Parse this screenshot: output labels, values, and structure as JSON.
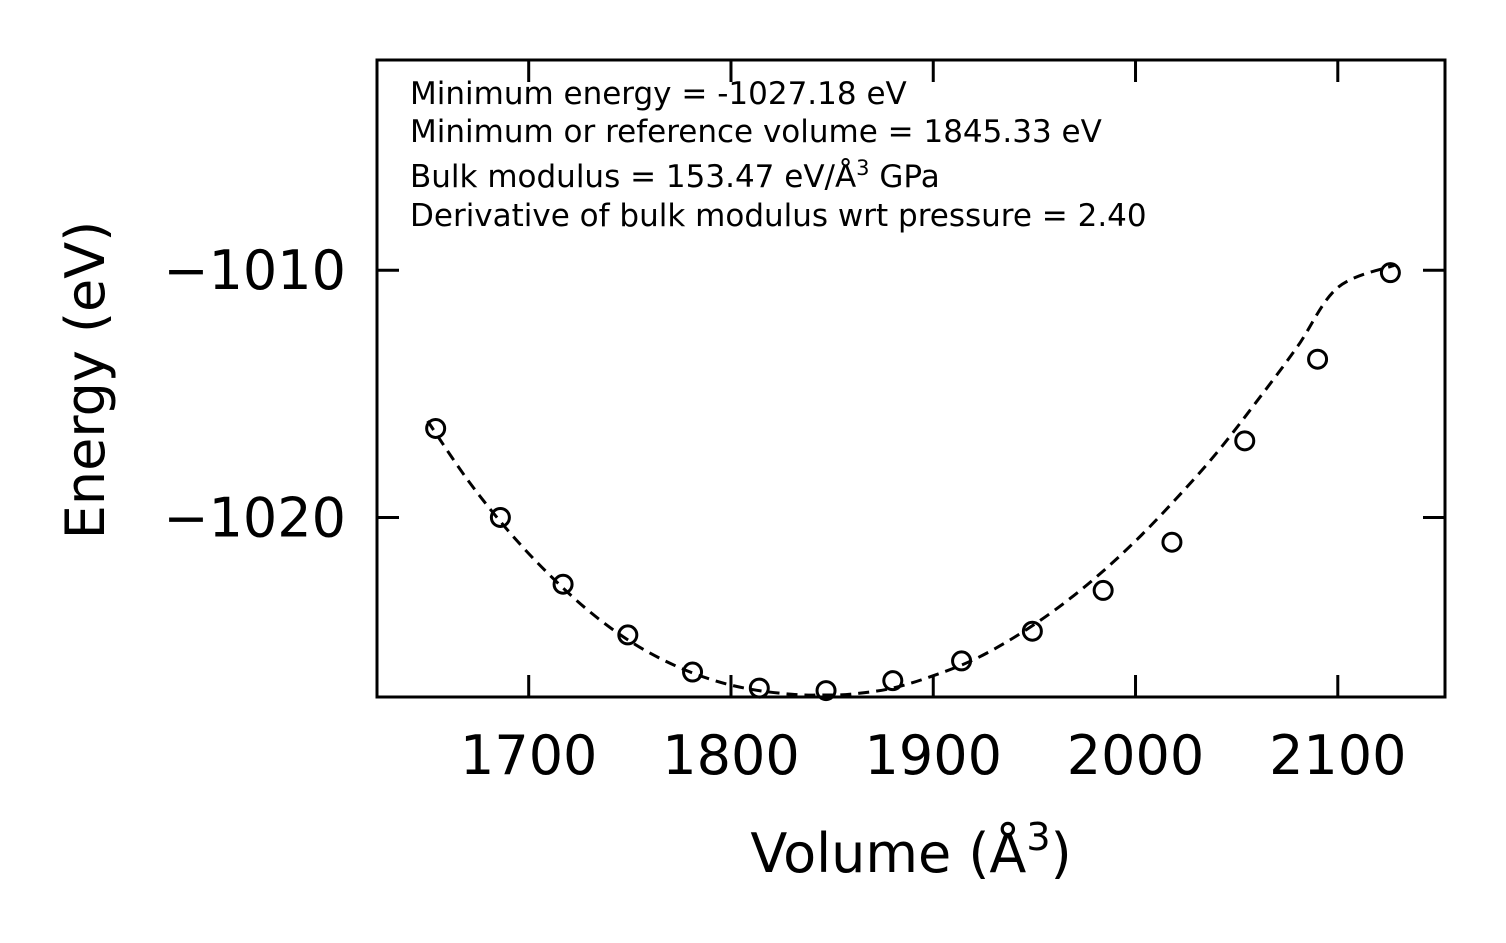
{
  "chart_data": {
    "type": "scatter",
    "title": "",
    "xlabel_main": "Volume (Å",
    "xlabel_sup": "3",
    "xlabel_end": ")",
    "ylabel": "Energy (eV)",
    "xlim": [
      1625,
      2153
    ],
    "ylim": [
      -1027.26,
      -1001.5
    ],
    "xticks": [
      1700,
      1800,
      1900,
      2000,
      2100
    ],
    "yticks": [
      -1010,
      -1020
    ],
    "ytick_labels": [
      "−1010",
      "−1020"
    ],
    "series": [
      {
        "name": "data",
        "marker": "open-circle",
        "x": [
          1654,
          1686,
          1717,
          1749,
          1781,
          1814,
          1847,
          1880,
          1914,
          1949,
          1984,
          2018,
          2054,
          2090,
          2126
        ],
        "y": [
          -1016.4,
          -1020.0,
          -1022.7,
          -1024.75,
          -1026.25,
          -1026.9,
          -1027.0,
          -1026.6,
          -1025.8,
          -1024.6,
          -1022.95,
          -1021.0,
          -1016.9,
          -1013.6,
          -1010.1
        ]
      },
      {
        "name": "fit",
        "style": "dashed",
        "x": [
          1650,
          1670,
          1690,
          1710,
          1730,
          1750,
          1770,
          1790,
          1810,
          1830,
          1845.33,
          1860,
          1880,
          1900,
          1920,
          1940,
          1960,
          1980,
          2000,
          2020,
          2040,
          2060,
          2080,
          2100,
          2128
        ],
        "y": [
          -1016.1,
          -1018.5,
          -1020.55,
          -1022.3,
          -1023.8,
          -1025.0,
          -1025.9,
          -1026.55,
          -1026.95,
          -1027.15,
          -1027.18,
          -1027.14,
          -1026.9,
          -1026.4,
          -1025.75,
          -1024.85,
          -1023.75,
          -1022.45,
          -1020.95,
          -1019.25,
          -1017.4,
          -1015.3,
          -1013.1,
          -1010.7,
          -1009.8
        ]
      }
    ],
    "annotations": [
      {
        "text": "Minimum energy = -1027.18 eV"
      },
      {
        "text": "Minimum or reference volume = 1845.33 eV"
      },
      {
        "text": "Bulk modulus = 153.47 eV/Å",
        "sup": "3",
        "after": " GPa"
      },
      {
        "text": "Derivative of bulk modulus wrt pressure = 2.40"
      }
    ],
    "grid": false,
    "legend": "none"
  }
}
